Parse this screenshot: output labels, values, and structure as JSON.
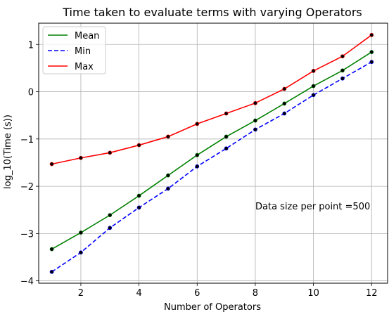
{
  "chart_data": {
    "type": "line",
    "title": "Time taken to evaluate terms with varying Operators",
    "xlabel": "Number of Operators",
    "ylabel": "log_10(Time (s))",
    "xlim": [
      0.55,
      12.55
    ],
    "ylim": [
      -4.05,
      1.45
    ],
    "xticks": [
      2,
      4,
      6,
      8,
      10,
      12
    ],
    "xtick_labels": [
      "2",
      "4",
      "6",
      "8",
      "10",
      "12"
    ],
    "yticks": [
      -4,
      -3,
      -2,
      -1,
      0,
      1
    ],
    "ytick_labels": [
      "−4",
      "−3",
      "−2",
      "−1",
      "0",
      "1"
    ],
    "grid": true,
    "legend_position": "top-left",
    "x": [
      1,
      2,
      3,
      4,
      5,
      6,
      7,
      8,
      9,
      10,
      11,
      12
    ],
    "series": [
      {
        "name": "Mean",
        "color": "#008000",
        "style": "solid",
        "values": [
          -3.33,
          -2.98,
          -2.61,
          -2.2,
          -1.77,
          -1.34,
          -0.95,
          -0.61,
          -0.25,
          0.12,
          0.45,
          0.84
        ]
      },
      {
        "name": "Min",
        "color": "#0000ff",
        "style": "dashed",
        "values": [
          -3.81,
          -3.4,
          -2.88,
          -2.45,
          -2.05,
          -1.58,
          -1.2,
          -0.8,
          -0.46,
          -0.07,
          0.28,
          0.63
        ]
      },
      {
        "name": "Max",
        "color": "#ff0000",
        "style": "solid",
        "values": [
          -1.53,
          -1.4,
          -1.29,
          -1.13,
          -0.95,
          -0.68,
          -0.46,
          -0.24,
          0.06,
          0.44,
          0.75,
          1.2
        ]
      }
    ],
    "annotation": "Data size per point =500"
  }
}
